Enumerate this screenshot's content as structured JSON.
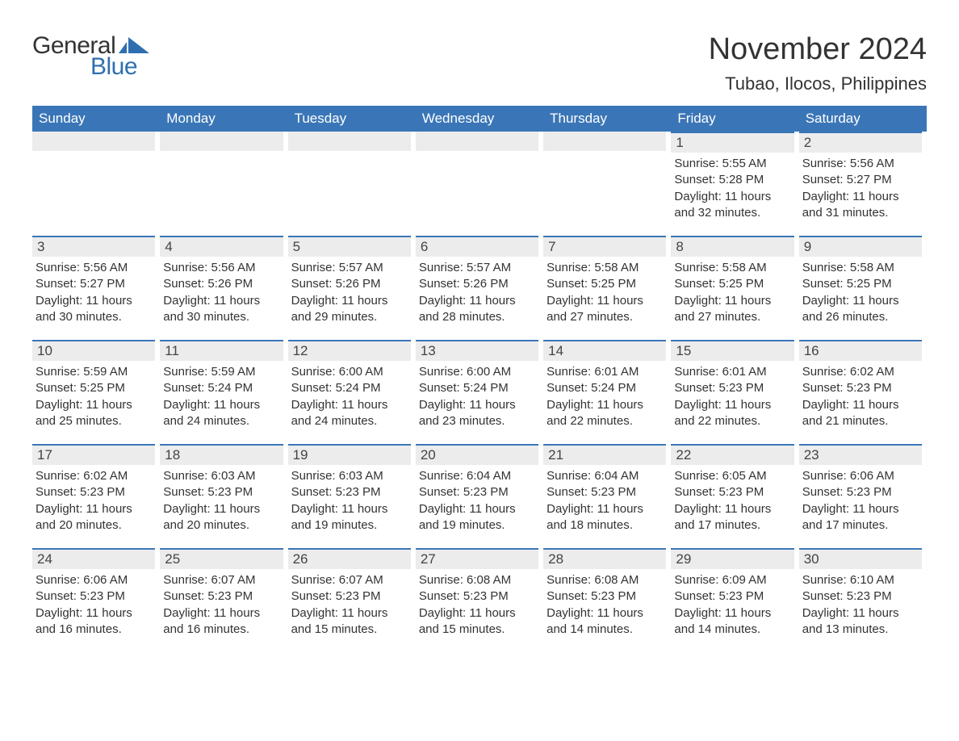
{
  "logo": {
    "general": "General",
    "blue": "Blue",
    "flag_color": "#2f6fb0"
  },
  "title": "November 2024",
  "location": "Tubao, Ilocos, Philippines",
  "colors": {
    "header_bg": "#3a76b7",
    "header_text": "#ffffff",
    "daynum_bg": "#ececec",
    "daynum_border": "#3a76b7",
    "body_text": "#333333",
    "logo_blue": "#2f6fb0"
  },
  "weekdays": [
    "Sunday",
    "Monday",
    "Tuesday",
    "Wednesday",
    "Thursday",
    "Friday",
    "Saturday"
  ],
  "weeks": [
    [
      null,
      null,
      null,
      null,
      null,
      {
        "n": "1",
        "sunrise": "Sunrise: 5:55 AM",
        "sunset": "Sunset: 5:28 PM",
        "daylight": "Daylight: 11 hours and 32 minutes."
      },
      {
        "n": "2",
        "sunrise": "Sunrise: 5:56 AM",
        "sunset": "Sunset: 5:27 PM",
        "daylight": "Daylight: 11 hours and 31 minutes."
      }
    ],
    [
      {
        "n": "3",
        "sunrise": "Sunrise: 5:56 AM",
        "sunset": "Sunset: 5:27 PM",
        "daylight": "Daylight: 11 hours and 30 minutes."
      },
      {
        "n": "4",
        "sunrise": "Sunrise: 5:56 AM",
        "sunset": "Sunset: 5:26 PM",
        "daylight": "Daylight: 11 hours and 30 minutes."
      },
      {
        "n": "5",
        "sunrise": "Sunrise: 5:57 AM",
        "sunset": "Sunset: 5:26 PM",
        "daylight": "Daylight: 11 hours and 29 minutes."
      },
      {
        "n": "6",
        "sunrise": "Sunrise: 5:57 AM",
        "sunset": "Sunset: 5:26 PM",
        "daylight": "Daylight: 11 hours and 28 minutes."
      },
      {
        "n": "7",
        "sunrise": "Sunrise: 5:58 AM",
        "sunset": "Sunset: 5:25 PM",
        "daylight": "Daylight: 11 hours and 27 minutes."
      },
      {
        "n": "8",
        "sunrise": "Sunrise: 5:58 AM",
        "sunset": "Sunset: 5:25 PM",
        "daylight": "Daylight: 11 hours and 27 minutes."
      },
      {
        "n": "9",
        "sunrise": "Sunrise: 5:58 AM",
        "sunset": "Sunset: 5:25 PM",
        "daylight": "Daylight: 11 hours and 26 minutes."
      }
    ],
    [
      {
        "n": "10",
        "sunrise": "Sunrise: 5:59 AM",
        "sunset": "Sunset: 5:25 PM",
        "daylight": "Daylight: 11 hours and 25 minutes."
      },
      {
        "n": "11",
        "sunrise": "Sunrise: 5:59 AM",
        "sunset": "Sunset: 5:24 PM",
        "daylight": "Daylight: 11 hours and 24 minutes."
      },
      {
        "n": "12",
        "sunrise": "Sunrise: 6:00 AM",
        "sunset": "Sunset: 5:24 PM",
        "daylight": "Daylight: 11 hours and 24 minutes."
      },
      {
        "n": "13",
        "sunrise": "Sunrise: 6:00 AM",
        "sunset": "Sunset: 5:24 PM",
        "daylight": "Daylight: 11 hours and 23 minutes."
      },
      {
        "n": "14",
        "sunrise": "Sunrise: 6:01 AM",
        "sunset": "Sunset: 5:24 PM",
        "daylight": "Daylight: 11 hours and 22 minutes."
      },
      {
        "n": "15",
        "sunrise": "Sunrise: 6:01 AM",
        "sunset": "Sunset: 5:23 PM",
        "daylight": "Daylight: 11 hours and 22 minutes."
      },
      {
        "n": "16",
        "sunrise": "Sunrise: 6:02 AM",
        "sunset": "Sunset: 5:23 PM",
        "daylight": "Daylight: 11 hours and 21 minutes."
      }
    ],
    [
      {
        "n": "17",
        "sunrise": "Sunrise: 6:02 AM",
        "sunset": "Sunset: 5:23 PM",
        "daylight": "Daylight: 11 hours and 20 minutes."
      },
      {
        "n": "18",
        "sunrise": "Sunrise: 6:03 AM",
        "sunset": "Sunset: 5:23 PM",
        "daylight": "Daylight: 11 hours and 20 minutes."
      },
      {
        "n": "19",
        "sunrise": "Sunrise: 6:03 AM",
        "sunset": "Sunset: 5:23 PM",
        "daylight": "Daylight: 11 hours and 19 minutes."
      },
      {
        "n": "20",
        "sunrise": "Sunrise: 6:04 AM",
        "sunset": "Sunset: 5:23 PM",
        "daylight": "Daylight: 11 hours and 19 minutes."
      },
      {
        "n": "21",
        "sunrise": "Sunrise: 6:04 AM",
        "sunset": "Sunset: 5:23 PM",
        "daylight": "Daylight: 11 hours and 18 minutes."
      },
      {
        "n": "22",
        "sunrise": "Sunrise: 6:05 AM",
        "sunset": "Sunset: 5:23 PM",
        "daylight": "Daylight: 11 hours and 17 minutes."
      },
      {
        "n": "23",
        "sunrise": "Sunrise: 6:06 AM",
        "sunset": "Sunset: 5:23 PM",
        "daylight": "Daylight: 11 hours and 17 minutes."
      }
    ],
    [
      {
        "n": "24",
        "sunrise": "Sunrise: 6:06 AM",
        "sunset": "Sunset: 5:23 PM",
        "daylight": "Daylight: 11 hours and 16 minutes."
      },
      {
        "n": "25",
        "sunrise": "Sunrise: 6:07 AM",
        "sunset": "Sunset: 5:23 PM",
        "daylight": "Daylight: 11 hours and 16 minutes."
      },
      {
        "n": "26",
        "sunrise": "Sunrise: 6:07 AM",
        "sunset": "Sunset: 5:23 PM",
        "daylight": "Daylight: 11 hours and 15 minutes."
      },
      {
        "n": "27",
        "sunrise": "Sunrise: 6:08 AM",
        "sunset": "Sunset: 5:23 PM",
        "daylight": "Daylight: 11 hours and 15 minutes."
      },
      {
        "n": "28",
        "sunrise": "Sunrise: 6:08 AM",
        "sunset": "Sunset: 5:23 PM",
        "daylight": "Daylight: 11 hours and 14 minutes."
      },
      {
        "n": "29",
        "sunrise": "Sunrise: 6:09 AM",
        "sunset": "Sunset: 5:23 PM",
        "daylight": "Daylight: 11 hours and 14 minutes."
      },
      {
        "n": "30",
        "sunrise": "Sunrise: 6:10 AM",
        "sunset": "Sunset: 5:23 PM",
        "daylight": "Daylight: 11 hours and 13 minutes."
      }
    ]
  ]
}
